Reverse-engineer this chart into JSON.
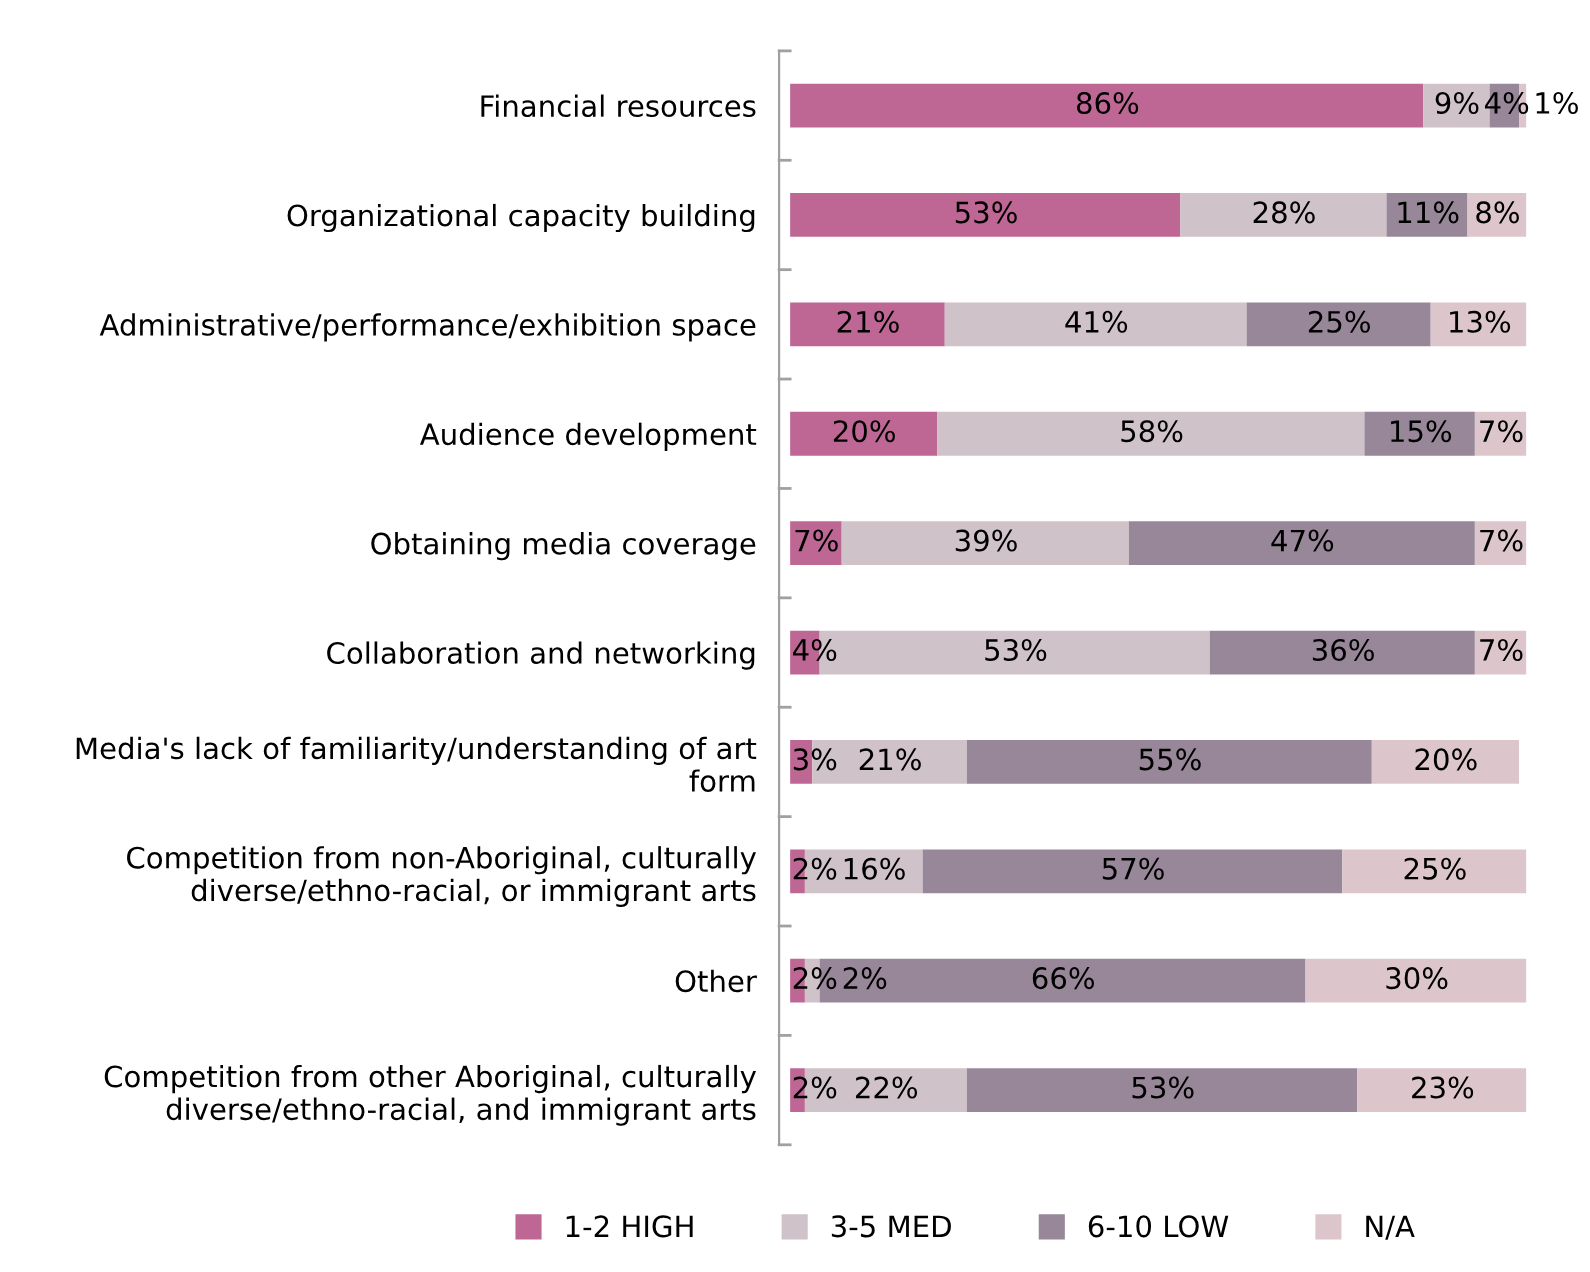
{
  "chart_data": {
    "type": "bar",
    "orientation": "horizontal",
    "stacked": true,
    "legend": "bottom",
    "categories": [
      "Financial resources",
      "Organizational capacity building",
      "Administrative/performance/exhibition space",
      "Audience development",
      "Obtaining media coverage",
      "Collaboration and networking",
      "Media's lack of familiarity/understanding of art\nform",
      "Competition from non-Aboriginal, culturally\ndiverse/ethno-racial, or immigrant arts",
      "Other",
      "Competition from other Aboriginal, culturally\ndiverse/ethno-racial, and immigrant arts"
    ],
    "series": [
      {
        "name": "1-2 HIGH",
        "color": "#be6794",
        "values": [
          86,
          53,
          21,
          20,
          7,
          4,
          3,
          2,
          2,
          2
        ],
        "value_labels": [
          "86%",
          "53%",
          "21%",
          "20%",
          "7%",
          "4%",
          "3%",
          "2%",
          "2%",
          "2%"
        ]
      },
      {
        "name": "3-5 MED",
        "color": "#cfc2c8",
        "values": [
          9,
          28,
          41,
          58,
          39,
          53,
          21,
          16,
          2,
          22
        ],
        "value_labels": [
          "9%",
          "28%",
          "41%",
          "58%",
          "39%",
          "53%",
          "21%",
          "16%",
          "2%",
          "22%"
        ]
      },
      {
        "name": "6-10 LOW",
        "color": "#978799",
        "values": [
          4,
          11,
          25,
          15,
          47,
          36,
          55,
          57,
          66,
          53
        ],
        "value_labels": [
          "4%",
          "11%",
          "25%",
          "15%",
          "47%",
          "36%",
          "55%",
          "57%",
          "66%",
          "53%"
        ]
      },
      {
        "name": "N/A",
        "color": "#dcc6cc",
        "values": [
          1,
          8,
          13,
          7,
          7,
          7,
          20,
          25,
          30,
          23
        ],
        "value_labels": [
          "1%",
          "8%",
          "13%",
          "7%",
          "7%",
          "7%",
          "20%",
          "25%",
          "30%",
          "23%"
        ]
      }
    ]
  }
}
